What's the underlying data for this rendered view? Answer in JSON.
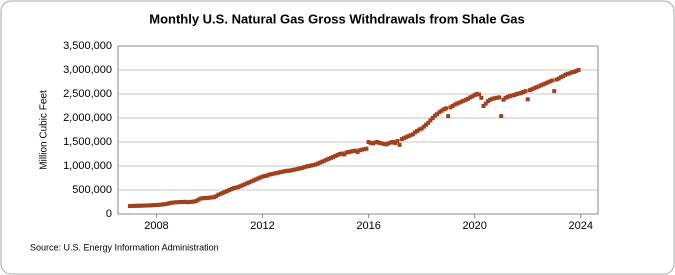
{
  "chart_data": {
    "type": "scatter",
    "title": "Monthly U.S. Natural Gas Gross Withdrawals from Shale Gas",
    "y_label": "Million Cubic Feet",
    "source": "Source: U.S. Energy Information Administration",
    "color": "#a0401e",
    "grid": true,
    "xlim": [
      2006.55,
      2024.65
    ],
    "xticks": [
      2008,
      2012,
      2016,
      2020,
      2024
    ],
    "ylim": [
      0,
      3500000
    ],
    "yticks": [
      0,
      {
        "value": 500000,
        "label": "500,000"
      },
      {
        "value": 1000000,
        "label": "1,000,000"
      },
      {
        "value": 1500000,
        "label": "1,500,000"
      },
      {
        "value": 2000000,
        "label": "2,000,000"
      },
      {
        "value": 2500000,
        "label": "2,500,000"
      },
      {
        "value": 3000000,
        "label": "3,000,000"
      },
      {
        "value": 3500000,
        "label": "3,500,000"
      }
    ],
    "x": [
      2007,
      2007.083,
      2007.167,
      2007.25,
      2007.333,
      2007.417,
      2007.5,
      2007.583,
      2007.667,
      2007.75,
      2007.833,
      2007.917,
      2008,
      2008.083,
      2008.167,
      2008.25,
      2008.333,
      2008.417,
      2008.5,
      2008.583,
      2008.667,
      2008.75,
      2008.833,
      2008.917,
      2009,
      2009.083,
      2009.167,
      2009.25,
      2009.333,
      2009.417,
      2009.5,
      2009.583,
      2009.667,
      2009.75,
      2009.833,
      2009.917,
      2010,
      2010.083,
      2010.167,
      2010.25,
      2010.333,
      2010.417,
      2010.5,
      2010.583,
      2010.667,
      2010.75,
      2010.833,
      2010.917,
      2011,
      2011.083,
      2011.167,
      2011.25,
      2011.333,
      2011.417,
      2011.5,
      2011.583,
      2011.667,
      2011.75,
      2011.833,
      2011.917,
      2012,
      2012.083,
      2012.167,
      2012.25,
      2012.333,
      2012.417,
      2012.5,
      2012.583,
      2012.667,
      2012.75,
      2012.833,
      2012.917,
      2013,
      2013.083,
      2013.167,
      2013.25,
      2013.333,
      2013.417,
      2013.5,
      2013.583,
      2013.667,
      2013.75,
      2013.833,
      2013.917,
      2014,
      2014.083,
      2014.167,
      2014.25,
      2014.333,
      2014.417,
      2014.5,
      2014.583,
      2014.667,
      2014.75,
      2014.833,
      2014.917,
      2015,
      2015.083,
      2015.167,
      2015.25,
      2015.333,
      2015.417,
      2015.5,
      2015.583,
      2015.667,
      2015.75,
      2015.833,
      2015.917,
      2016,
      2016.083,
      2016.167,
      2016.25,
      2016.333,
      2016.417,
      2016.5,
      2016.583,
      2016.667,
      2016.75,
      2016.833,
      2016.917,
      2017,
      2017.083,
      2017.167,
      2017.25,
      2017.333,
      2017.417,
      2017.5,
      2017.583,
      2017.667,
      2017.75,
      2017.833,
      2017.917,
      2018,
      2018.083,
      2018.167,
      2018.25,
      2018.333,
      2018.417,
      2018.5,
      2018.583,
      2018.667,
      2018.75,
      2018.833,
      2018.917,
      2019,
      2019.083,
      2019.167,
      2019.25,
      2019.333,
      2019.417,
      2019.5,
      2019.583,
      2019.667,
      2019.75,
      2019.833,
      2019.917,
      2020,
      2020.083,
      2020.167,
      2020.25,
      2020.333,
      2020.417,
      2020.5,
      2020.583,
      2020.667,
      2020.75,
      2020.833,
      2020.917,
      2021,
      2021.083,
      2021.167,
      2021.25,
      2021.333,
      2021.417,
      2021.5,
      2021.583,
      2021.667,
      2021.75,
      2021.833,
      2021.917,
      2022,
      2022.083,
      2022.167,
      2022.25,
      2022.333,
      2022.417,
      2022.5,
      2022.583,
      2022.667,
      2022.75,
      2022.833,
      2022.917,
      2023,
      2023.083,
      2023.167,
      2023.25,
      2023.333,
      2023.417,
      2023.5,
      2023.583,
      2023.667,
      2023.75,
      2023.833,
      2023.917
    ],
    "values": [
      165000,
      168000,
      170000,
      172000,
      170000,
      173000,
      175000,
      176000,
      178000,
      180000,
      182000,
      185000,
      188000,
      190000,
      195000,
      200000,
      205000,
      215000,
      225000,
      235000,
      240000,
      245000,
      245000,
      250000,
      250000,
      255000,
      245000,
      250000,
      255000,
      260000,
      270000,
      300000,
      320000,
      330000,
      330000,
      335000,
      340000,
      345000,
      350000,
      370000,
      400000,
      420000,
      440000,
      460000,
      480000,
      500000,
      520000,
      540000,
      550000,
      560000,
      580000,
      600000,
      620000,
      640000,
      660000,
      680000,
      700000,
      720000,
      740000,
      760000,
      780000,
      790000,
      800000,
      820000,
      830000,
      840000,
      850000,
      860000,
      870000,
      880000,
      890000,
      900000,
      900000,
      910000,
      920000,
      930000,
      940000,
      950000,
      960000,
      980000,
      990000,
      1000000,
      1010000,
      1020000,
      1030000,
      1050000,
      1070000,
      1090000,
      1110000,
      1130000,
      1150000,
      1170000,
      1190000,
      1210000,
      1230000,
      1250000,
      1260000,
      1240000,
      1280000,
      1290000,
      1300000,
      1310000,
      1320000,
      1290000,
      1330000,
      1340000,
      1350000,
      1360000,
      1500000,
      1480000,
      1470000,
      1490000,
      1500000,
      1480000,
      1470000,
      1460000,
      1450000,
      1470000,
      1490000,
      1500000,
      1480000,
      1520000,
      1440000,
      1560000,
      1580000,
      1600000,
      1620000,
      1640000,
      1660000,
      1700000,
      1730000,
      1760000,
      1780000,
      1820000,
      1860000,
      1900000,
      1950000,
      2000000,
      2050000,
      2080000,
      2120000,
      2150000,
      2180000,
      2200000,
      2040000,
      2220000,
      2250000,
      2280000,
      2300000,
      2320000,
      2340000,
      2360000,
      2380000,
      2400000,
      2430000,
      2450000,
      2480000,
      2500000,
      2490000,
      2420000,
      2250000,
      2300000,
      2350000,
      2380000,
      2400000,
      2410000,
      2420000,
      2430000,
      2040000,
      2380000,
      2420000,
      2440000,
      2460000,
      2470000,
      2480000,
      2500000,
      2510000,
      2520000,
      2540000,
      2560000,
      2390000,
      2580000,
      2600000,
      2620000,
      2640000,
      2660000,
      2680000,
      2700000,
      2720000,
      2740000,
      2760000,
      2780000,
      2560000,
      2800000,
      2820000,
      2850000,
      2870000,
      2900000,
      2920000,
      2930000,
      2950000,
      2960000,
      2980000,
      3000000
    ]
  }
}
